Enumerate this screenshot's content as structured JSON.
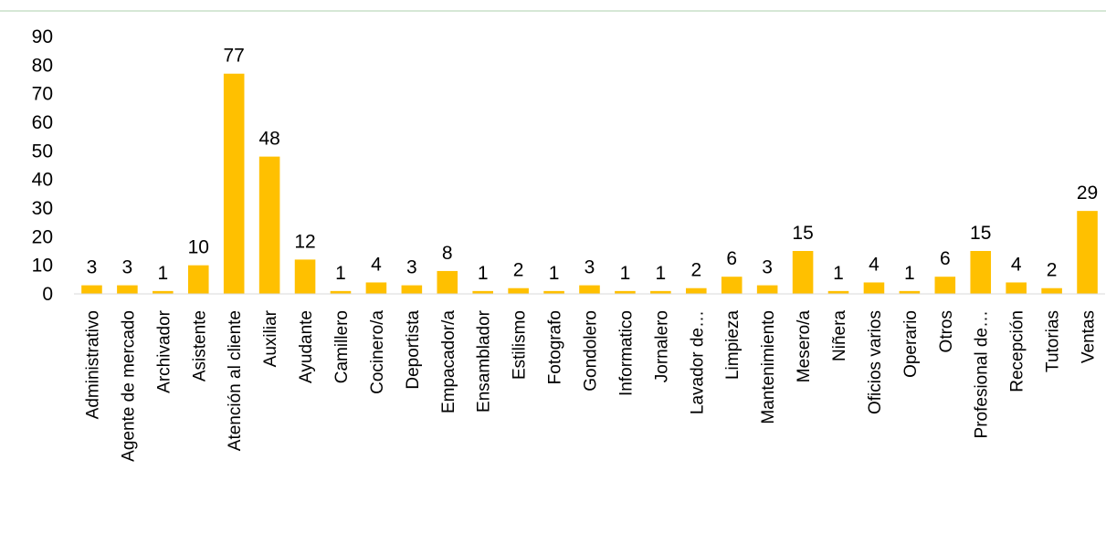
{
  "chart_data": {
    "type": "bar",
    "title": "",
    "xlabel": "",
    "ylabel": "",
    "ylim": [
      0,
      90
    ],
    "yticks": [
      0,
      10,
      20,
      30,
      40,
      50,
      60,
      70,
      80,
      90
    ],
    "grid": false,
    "legend": "none",
    "bar_color": "#FFC000",
    "categories": [
      "Administrativo",
      "Agente de mercado",
      "Archivador",
      "Asistente",
      "Atención al cliente",
      "Auxiliar",
      "Ayudante",
      "Camillero",
      "Cocinero/a",
      "Deportista",
      "Empacador/a",
      "Ensamblador",
      "Estilismo",
      "Fotografo",
      "Gondolero",
      "Informatico",
      "Jornalero",
      "Lavador de…",
      "Limpieza",
      "Mantenimiento",
      "Mesero/a",
      "Niñera",
      "Oficios varios",
      "Operario",
      "Otros",
      "Profesional de…",
      "Recepción",
      "Tutorias",
      "Ventas"
    ],
    "values": [
      3,
      3,
      1,
      10,
      77,
      48,
      12,
      1,
      4,
      3,
      8,
      1,
      2,
      1,
      3,
      1,
      1,
      2,
      6,
      3,
      15,
      1,
      4,
      1,
      6,
      15,
      4,
      2,
      29
    ]
  }
}
